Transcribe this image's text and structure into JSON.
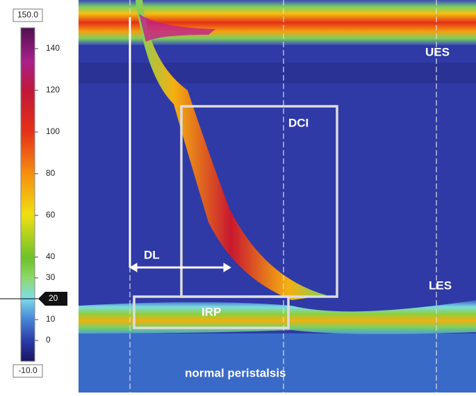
{
  "colorbar": {
    "range": [
      {
        "value": -10,
        "label": "-10.0"
      },
      {
        "value": 150,
        "label": "150.0"
      }
    ],
    "ticks": [
      140,
      120,
      100,
      80,
      60,
      40,
      30,
      10,
      0
    ],
    "marker": 20
  },
  "annotations": {
    "ues": "UES",
    "dci": "DCI",
    "dl": "DL",
    "les": "LES",
    "irp": "IRP",
    "caption": "normal peristalsis"
  }
}
